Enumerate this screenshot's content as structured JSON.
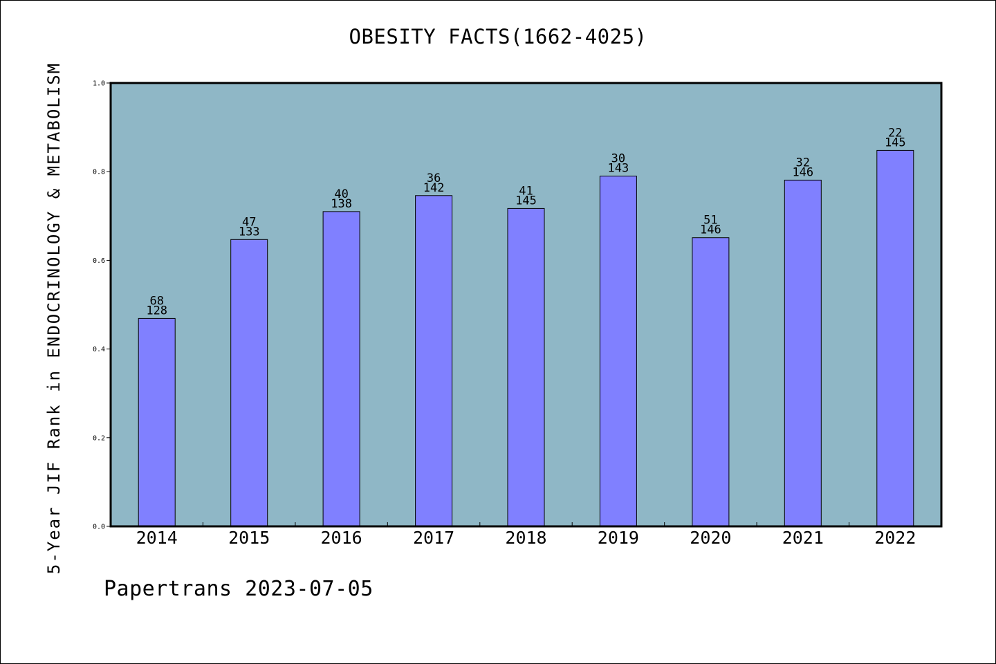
{
  "title": "OBESITY FACTS(1662-4025)",
  "ylabel": "5-Year JIF Rank in ENDOCRINOLOGY & METABOLISM",
  "footer": "Papertrans 2023-07-05",
  "colors": {
    "plot_background": "#8fb7c6",
    "bar_fill": "#8080ff",
    "bar_stroke": "#000000"
  },
  "chart_data": {
    "type": "bar",
    "title": "OBESITY FACTS(1662-4025)",
    "xlabel": "",
    "ylabel": "5-Year JIF Rank in ENDOCRINOLOGY & METABOLISM",
    "categories": [
      "2014",
      "2015",
      "2016",
      "2017",
      "2018",
      "2019",
      "2020",
      "2021",
      "2022"
    ],
    "values": [
      0.469,
      0.647,
      0.71,
      0.746,
      0.717,
      0.79,
      0.651,
      0.781,
      0.848
    ],
    "rank_labels": [
      "68",
      "47",
      "40",
      "36",
      "41",
      "30",
      "51",
      "32",
      "22"
    ],
    "total_labels": [
      "128",
      "133",
      "138",
      "142",
      "145",
      "143",
      "146",
      "146",
      "145"
    ],
    "ylim": [
      0,
      1.0
    ],
    "yticks": [
      "0.0",
      "0.2",
      "0.4",
      "0.6",
      "0.8",
      "1.0"
    ],
    "grid": false,
    "legend": "none"
  }
}
